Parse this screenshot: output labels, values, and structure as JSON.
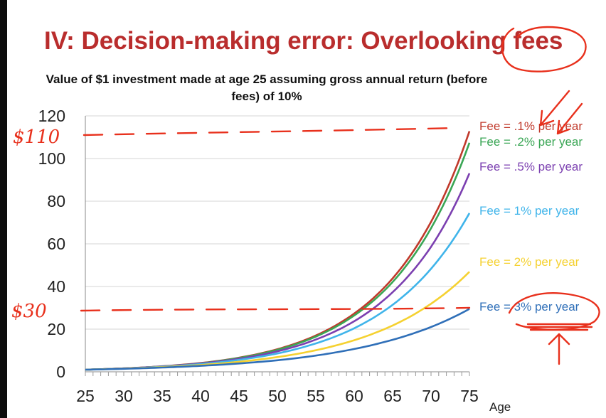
{
  "slide": {
    "title": "IV: Decision-making error: Overlooking fees"
  },
  "annotations": {
    "mark_upper": "$110",
    "mark_lower": "$30",
    "ink_color": "#e8301c"
  },
  "chart_data": {
    "type": "line",
    "title": "Value of $1 investment made at age 25 assuming gross annual return (before fees) of 10%",
    "xlabel": "Age",
    "ylabel": "",
    "xlim": [
      25,
      75
    ],
    "ylim": [
      0,
      120
    ],
    "x_ticks": [
      25,
      30,
      35,
      40,
      45,
      50,
      55,
      60,
      65,
      70,
      75
    ],
    "y_ticks": [
      0,
      20,
      40,
      60,
      80,
      100,
      120
    ],
    "grid": true,
    "legend": "right, labels at line ends",
    "x": [
      25,
      30,
      35,
      40,
      45,
      50,
      55,
      60,
      65,
      70,
      75
    ],
    "series": [
      {
        "name": "Fee = .1% per year",
        "color": "#c0392b",
        "values": [
          1.0,
          1.6,
          2.6,
          4.1,
          6.6,
          10.6,
          17.0,
          27.3,
          43.8,
          70.3,
          112.8
        ]
      },
      {
        "name": "Fee = .2% per year",
        "color": "#3aa655",
        "values": [
          1.0,
          1.6,
          2.5,
          4.0,
          6.5,
          10.3,
          16.5,
          26.4,
          42.1,
          67.3,
          107.4
        ]
      },
      {
        "name": "Fee = .5% per year",
        "color": "#7b3fb0",
        "values": [
          1.0,
          1.6,
          2.5,
          3.9,
          6.1,
          9.6,
          15.1,
          23.7,
          37.3,
          58.6,
          93.1
        ]
      },
      {
        "name": "Fee = 1% per year",
        "color": "#3fb4ea",
        "values": [
          1.0,
          1.5,
          2.4,
          3.6,
          5.6,
          8.6,
          13.3,
          20.4,
          31.4,
          48.3,
          74.4
        ]
      },
      {
        "name": "Fee = 2% per year",
        "color": "#f5d130",
        "values": [
          1.0,
          1.5,
          2.2,
          3.2,
          4.7,
          6.9,
          10.1,
          14.8,
          21.7,
          31.9,
          46.9
        ]
      },
      {
        "name": "Fee = 3% per year",
        "color": "#2f6fb8",
        "values": [
          1.0,
          1.4,
          2.0,
          2.8,
          3.9,
          5.4,
          7.6,
          10.7,
          15.0,
          21.0,
          29.5
        ]
      }
    ]
  }
}
